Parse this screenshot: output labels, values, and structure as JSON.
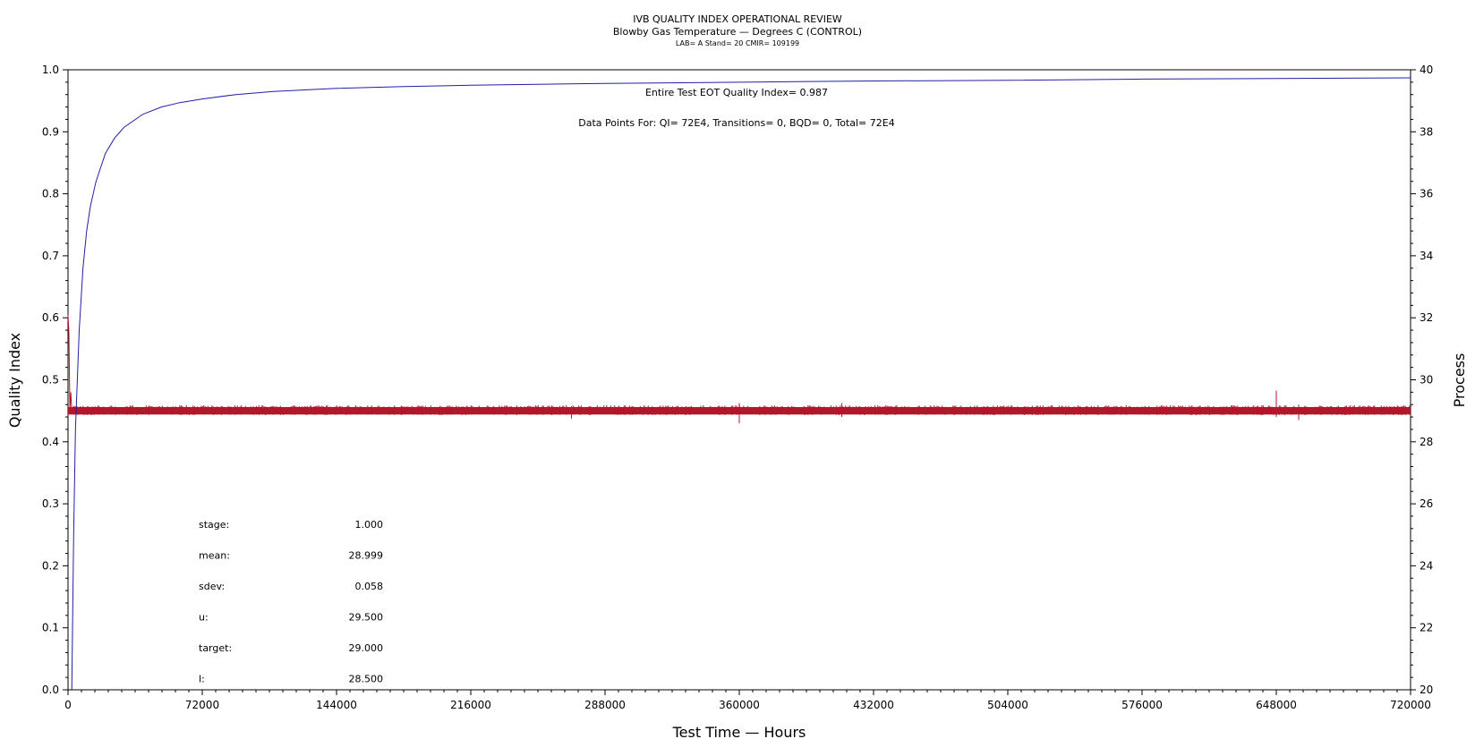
{
  "chart_data": {
    "type": "line",
    "title": "IVB QUALITY INDEX OPERATIONAL REVIEW",
    "subtitle": "Blowby Gas Temperature — Degrees C (CONTROL)",
    "subtitle2": "LAB= A Stand= 20 CMIR= 109199",
    "xlabel": "Test Time — Hours",
    "ylabel_left": "Quality Index",
    "ylabel_right": "Process",
    "xlim": [
      0,
      720000
    ],
    "ylim_left": [
      0,
      1
    ],
    "ylim_right": [
      20,
      40
    ],
    "x_ticks": [
      0,
      72000,
      144000,
      216000,
      288000,
      360000,
      432000,
      504000,
      576000,
      648000,
      720000
    ],
    "y_left_ticks": [
      "0.0",
      "0.1",
      "0.2",
      "0.3",
      "0.4",
      "0.5",
      "0.6",
      "0.7",
      "0.8",
      "0.9",
      "1.0"
    ],
    "y_right_ticks": [
      20,
      22,
      24,
      26,
      28,
      30,
      32,
      34,
      36,
      38,
      40
    ],
    "annotations": {
      "eot": "Entire Test EOT Quality Index=   0.987",
      "points": "Data Points For: QI=  72E4, Transitions=     0, BQD=     0, Total=  72E4"
    },
    "stats": [
      {
        "label": "stage:",
        "value": "1.000"
      },
      {
        "label": "mean:",
        "value": "28.999"
      },
      {
        "label": "sdev:",
        "value": "0.058"
      },
      {
        "label": "u:",
        "value": "29.500"
      },
      {
        "label": "target:",
        "value": "29.000"
      },
      {
        "label": "l:",
        "value": "28.500"
      }
    ],
    "series": [
      {
        "axis": "left",
        "color": "#1f1fa8",
        "x": [
          2000,
          3000,
          4000,
          5000,
          6000,
          8000,
          10000,
          12000,
          15000,
          20000,
          25000,
          30000,
          40000,
          50000,
          60000,
          72000,
          90000,
          110000,
          144000,
          180000,
          216000,
          288000,
          360000,
          432000,
          504000,
          576000,
          648000,
          720000
        ],
        "values": [
          0.0,
          0.25,
          0.42,
          0.5,
          0.58,
          0.68,
          0.74,
          0.78,
          0.82,
          0.865,
          0.89,
          0.907,
          0.928,
          0.94,
          0.947,
          0.953,
          0.96,
          0.965,
          0.97,
          0.973,
          0.975,
          0.978,
          0.98,
          0.982,
          0.983,
          0.985,
          0.986,
          0.987
        ]
      },
      {
        "axis": "right",
        "color": "#b3172b",
        "x": [
          0,
          500,
          1000,
          1500,
          2000,
          2500,
          720000
        ],
        "values": [
          32.1,
          31.5,
          29.0,
          29.6,
          29.0,
          28.9,
          29.0
        ],
        "spikes": [
          {
            "x": 360000,
            "high": 29.25,
            "low": 28.6
          },
          {
            "x": 648000,
            "high": 29.65,
            "low": 28.8
          },
          {
            "x": 660000,
            "high": 29.2,
            "low": 28.7
          },
          {
            "x": 270000,
            "high": 29.15,
            "low": 28.75
          },
          {
            "x": 415000,
            "high": 29.25,
            "low": 28.8
          }
        ]
      }
    ]
  }
}
